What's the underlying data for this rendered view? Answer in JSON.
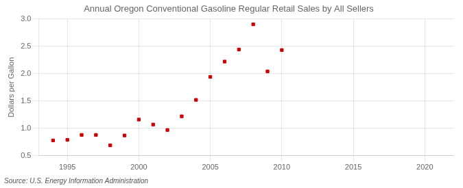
{
  "chart_data": {
    "type": "scatter",
    "title": "Annual Oregon Conventional Gasoline Regular Retail Sales by All Sellers",
    "ylabel": "Dollars per Gallon",
    "annotations": [
      "Source: U.S. Energy Information Administration"
    ],
    "x": [
      1994,
      1995,
      1996,
      1997,
      1998,
      1999,
      2000,
      2001,
      2002,
      2003,
      2004,
      2005,
      2006,
      2007,
      2008,
      2009,
      2010
    ],
    "values": [
      0.78,
      0.79,
      0.88,
      0.88,
      0.69,
      0.87,
      1.16,
      1.07,
      0.97,
      1.22,
      1.52,
      1.94,
      2.22,
      2.44,
      2.9,
      2.04,
      2.43
    ],
    "color": "#cc0000",
    "marker": "square",
    "xlim": [
      1993,
      2022
    ],
    "xticks": [
      1995,
      2000,
      2005,
      2010,
      2015,
      2020
    ],
    "ylim": [
      0.5,
      3.0
    ],
    "yticks": [
      0.5,
      {
        "value": 1.0,
        "label": "1.0"
      },
      1.5,
      {
        "value": 2.0,
        "label": "2.0"
      },
      2.5,
      {
        "value": 3.0,
        "label": "3.0"
      }
    ],
    "grid": true
  }
}
